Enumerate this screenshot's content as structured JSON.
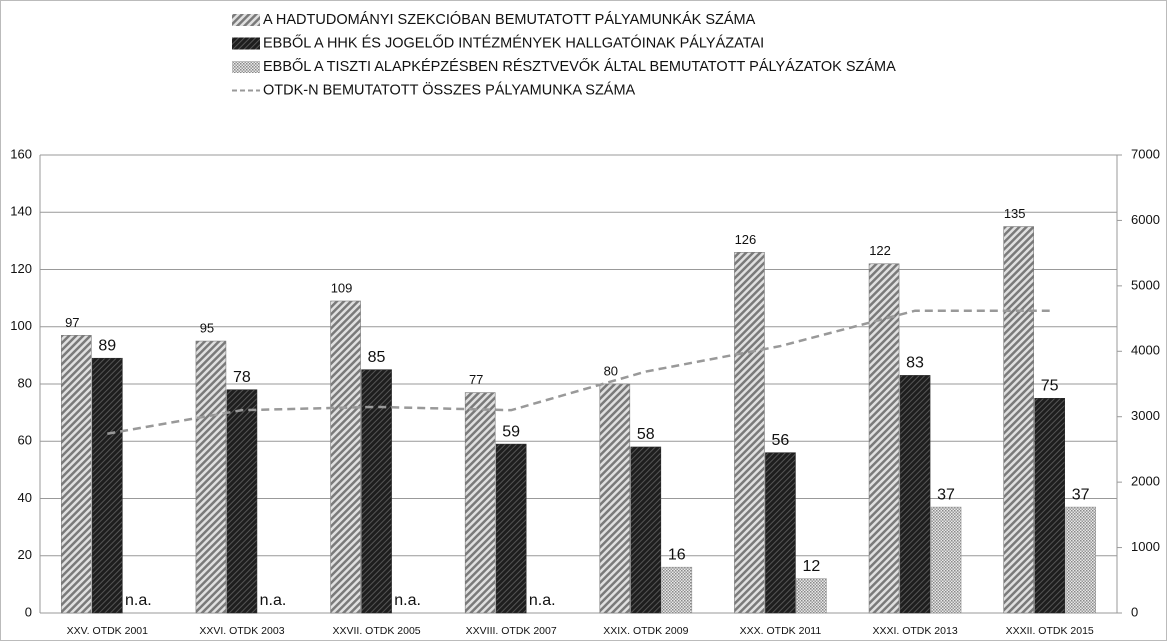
{
  "chart_data": {
    "type": "bar",
    "categories": [
      "XXV. OTDK 2001",
      "XXVI. OTDK 2003",
      "XXVII. OTDK 2005",
      "XXVIII. OTDK 2007",
      "XXIX. OTDK 2009",
      "XXX. OTDK 2011",
      "XXXI. OTDK 2013",
      "XXXII. OTDK 2015"
    ],
    "series": [
      {
        "name": "A HADTUDOMÁNYI SZEKCIÓBAN BEMUTATOTT PÁLYAMUNKÁK SZÁMA",
        "color": "#7a7a7a",
        "values": [
          97,
          95,
          109,
          77,
          80,
          126,
          122,
          135
        ]
      },
      {
        "name": "EBBŐL A HHK ÉS JOGELŐD INTÉZMÉNYEK HALLGATÓINAK PÁLYÁZATAI",
        "color": "#2a2a2a",
        "values": [
          89,
          78,
          85,
          59,
          58,
          56,
          83,
          75
        ]
      },
      {
        "name": "EBBŐL A TISZTI ALAPKÉPZÉSBEN RÉSZTVEVŐK ÁLTAL BEMUTATOTT PÁLYÁZATOK SZÁMA",
        "color": "#9a9a9a",
        "values": [
          null,
          null,
          null,
          null,
          16,
          12,
          37,
          37
        ],
        "value_labels": [
          "n.a.",
          "n.a.",
          "n.a.",
          "n.a.",
          "16",
          "12",
          "37",
          "37"
        ]
      },
      {
        "name": "OTDK-N BEMUTATOTT ÖSSZES PÁLYAMUNKA SZÁMA",
        "color": "#999999",
        "type": "line",
        "axis": "y2",
        "values": [
          2740,
          3100,
          3150,
          3100,
          3690,
          4080,
          4620,
          4620
        ]
      }
    ],
    "ylim": [
      0,
      160
    ],
    "yticks": [
      0,
      20,
      40,
      60,
      80,
      100,
      120,
      140,
      160
    ],
    "y2lim": [
      0,
      7000
    ],
    "y2ticks": [
      0,
      1000,
      2000,
      3000,
      4000,
      5000,
      6000,
      7000
    ],
    "grid": true,
    "legend": "top"
  }
}
